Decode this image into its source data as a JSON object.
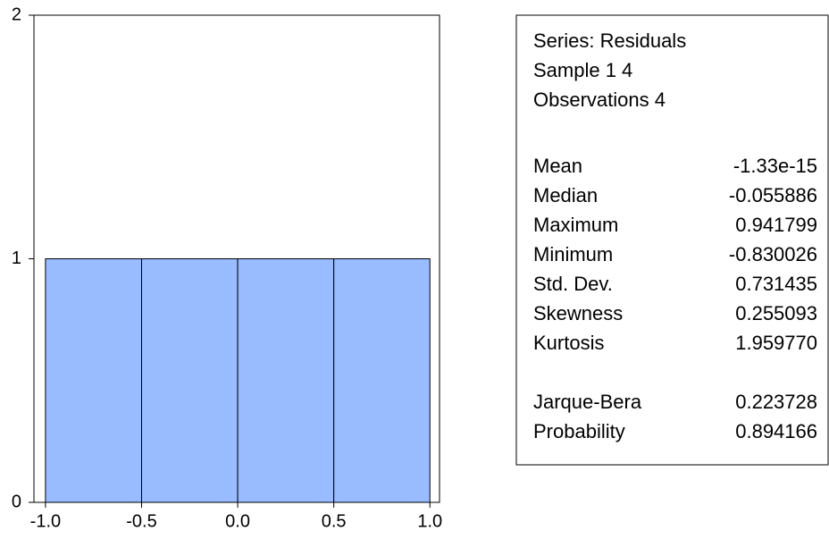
{
  "chart_data": {
    "type": "histogram",
    "bins": [
      -1.0,
      -0.5,
      0.0,
      0.5,
      1.0
    ],
    "counts": [
      1,
      1,
      1,
      1
    ],
    "color": "#99bbff",
    "xlim": [
      -1.06,
      1.05
    ],
    "xticks": [
      {
        "value": -1.0,
        "label": "-1.0"
      },
      {
        "value": -0.5,
        "label": "-0.5"
      },
      {
        "value": 0.0,
        "label": "0.0"
      },
      {
        "value": 0.5,
        "label": "0.5"
      },
      {
        "value": 1.0,
        "label": "1.0"
      }
    ],
    "ylim": [
      0,
      2
    ],
    "yticks": [
      0,
      1,
      2
    ],
    "stats_box": {
      "header": [
        "Series: Residuals",
        "Sample 1 4",
        "Observations 4"
      ],
      "rows": [
        {
          "label": "Mean",
          "value": "-1.33e-15"
        },
        {
          "label": "Median",
          "value": "-0.055886"
        },
        {
          "label": "Maximum",
          "value": "0.941799"
        },
        {
          "label": "Minimum",
          "value": "-0.830026"
        },
        {
          "label": "Std. Dev.",
          "value": "0.731435"
        },
        {
          "label": "Skewness",
          "value": "0.255093"
        },
        {
          "label": "Kurtosis",
          "value": "1.959770"
        }
      ],
      "test_rows": [
        {
          "label": "Jarque-Bera",
          "value": "0.223728"
        },
        {
          "label": "Probability",
          "value": "0.894166"
        }
      ]
    }
  }
}
